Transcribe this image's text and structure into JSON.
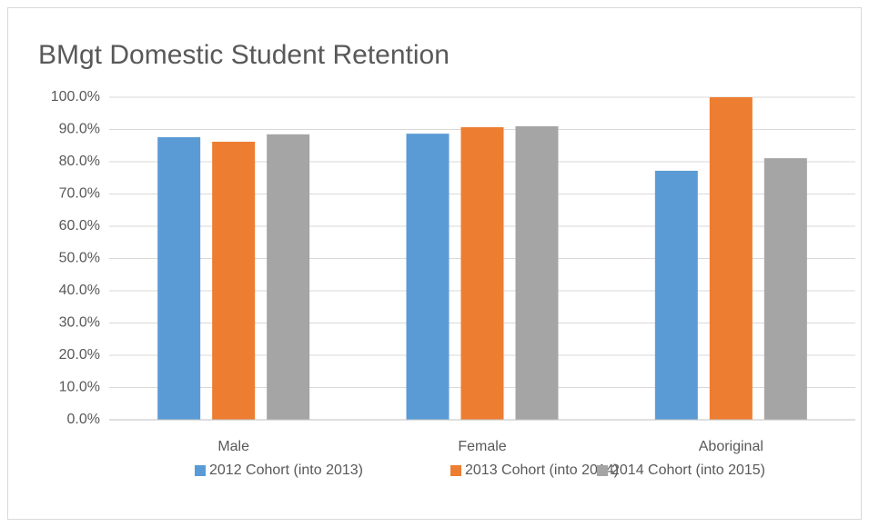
{
  "chart_data": {
    "type": "bar",
    "title": "BMgt Domestic Student Retention",
    "categories": [
      "Male",
      "Female",
      "Aboriginal"
    ],
    "series": [
      {
        "name": "2012 Cohort (into 2013)",
        "color": "#5b9bd5",
        "values": [
          87.6,
          88.7,
          77.2
        ]
      },
      {
        "name": "2013 Cohort (into 2014)",
        "color": "#ed7d31",
        "values": [
          86.2,
          90.7,
          100
        ]
      },
      {
        "name": "2014 Cohort (into 2015)",
        "color": "#a5a5a5",
        "values": [
          88.5,
          91.0,
          81.1
        ]
      }
    ],
    "ylim": [
      0,
      100
    ],
    "yticks": [
      {
        "value": 0,
        "label": "0.0%"
      },
      {
        "value": 10,
        "label": "10.0%"
      },
      {
        "value": 20,
        "label": "20.0%"
      },
      {
        "value": 30,
        "label": "30.0%"
      },
      {
        "value": 40,
        "label": "40.0%"
      },
      {
        "value": 50,
        "label": "50.0%"
      },
      {
        "value": 60,
        "label": "60.0%"
      },
      {
        "value": 70,
        "label": "70.0%"
      },
      {
        "value": 80,
        "label": "80.0%"
      },
      {
        "value": 90,
        "label": "90.0%"
      },
      {
        "value": 100,
        "label": "100.0%"
      }
    ],
    "grid": true,
    "legend": "bottom"
  }
}
